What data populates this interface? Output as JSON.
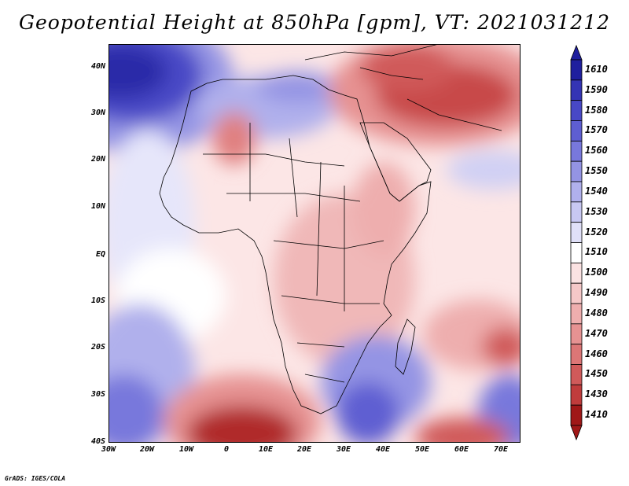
{
  "title": "Geopotential Height at 850hPa [gpm], VT: 2021031212",
  "y_labels": [
    "40N",
    "30N",
    "20N",
    "10N",
    "EQ",
    "10S",
    "20S",
    "30S",
    "40S"
  ],
  "x_labels": [
    "30W",
    "20W",
    "10W",
    "0",
    "10E",
    "20E",
    "30E",
    "40E",
    "50E",
    "60E",
    "70E"
  ],
  "credit": "GrADS: IGES/COLA",
  "colorbar": {
    "labels": [
      "1610",
      "1590",
      "1580",
      "1570",
      "1560",
      "1550",
      "1540",
      "1530",
      "1520",
      "1510",
      "1500",
      "1490",
      "1480",
      "1470",
      "1460",
      "1450",
      "1430",
      "1410"
    ],
    "colors": [
      "#1f1f9e",
      "#3434b4",
      "#4848c6",
      "#5e5ed2",
      "#7878dc",
      "#9494e4",
      "#b0b0ec",
      "#c8c8f2",
      "#e0e0f8",
      "#ffffff",
      "#fbe2e2",
      "#f5c8c8",
      "#eeaeae",
      "#e69292",
      "#dc7676",
      "#d05a5a",
      "#c03c3c",
      "#a01818"
    ]
  }
}
